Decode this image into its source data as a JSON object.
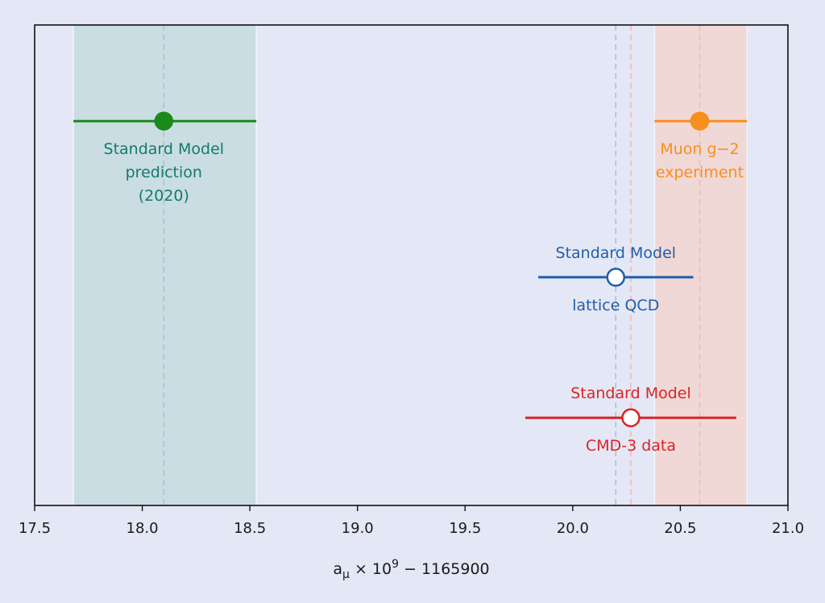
{
  "chart_data": {
    "type": "scatter",
    "title": "",
    "xlabel": {
      "base": "a",
      "subscript": "μ",
      "mid": " × 10",
      "superscript": "9",
      "tail": " − 1165900"
    },
    "xlim": [
      17.5,
      21.0
    ],
    "ylim": [
      0,
      4
    ],
    "xticks": [
      "17.5",
      "18.0",
      "18.5",
      "19.0",
      "19.5",
      "20.0",
      "20.5",
      "21.0"
    ],
    "xtick_values": [
      17.5,
      18.0,
      18.5,
      19.0,
      19.5,
      20.0,
      20.5,
      21.0
    ],
    "grid": false,
    "colors": {
      "background": "#e4e7f5",
      "band_sm2020": "#c9dde3",
      "band_experiment": "#f0d8d6",
      "sm2020": "#1a8a1a",
      "sm2020_label": "#137a6e",
      "experiment": "#f78f1e",
      "lattice": "#1f5fa8",
      "cmd3": "#d92424"
    },
    "bands": [
      {
        "id": "sm2020",
        "xmin": 17.68,
        "xmax": 18.53,
        "center": 18.1,
        "color": "#c9dde3",
        "line_color": "#a9c0c9"
      },
      {
        "id": "experiment",
        "xmin": 20.38,
        "xmax": 20.81,
        "center": 20.59,
        "color": "#f0d8d6",
        "line_color": "#f0b8b0"
      }
    ],
    "vlines": [
      {
        "x": 20.2,
        "color": "#a9bccf"
      },
      {
        "x": 20.27,
        "color": "#f0b4ac"
      }
    ],
    "points": [
      {
        "id": "sm2020",
        "x": 18.1,
        "xmin": 17.68,
        "xmax": 18.53,
        "y": 3.2,
        "filled": true,
        "color": "#1a8a1a",
        "label_color": "#137a6e",
        "label_above": [],
        "label_below": [
          "Standard Model",
          "prediction",
          "(2020)"
        ]
      },
      {
        "id": "experiment",
        "x": 20.59,
        "xmin": 20.38,
        "xmax": 20.81,
        "y": 3.2,
        "filled": true,
        "color": "#f78f1e",
        "label_color": "#f78f1e",
        "label_above": [],
        "label_below": [
          "Muon g−2",
          "experiment"
        ]
      },
      {
        "id": "lattice",
        "x": 20.2,
        "xmin": 19.84,
        "xmax": 20.56,
        "y": 1.9,
        "filled": false,
        "color": "#1f5fa8",
        "label_color": "#1f5fa8",
        "label_above": [
          "Standard Model"
        ],
        "label_below": [
          "lattice QCD"
        ]
      },
      {
        "id": "cmd3",
        "x": 20.27,
        "xmin": 19.78,
        "xmax": 20.76,
        "y": 0.73,
        "filled": false,
        "color": "#d92424",
        "label_color": "#d92424",
        "label_above": [
          "Standard Model"
        ],
        "label_below": [
          "CMD-3 data"
        ]
      }
    ]
  }
}
